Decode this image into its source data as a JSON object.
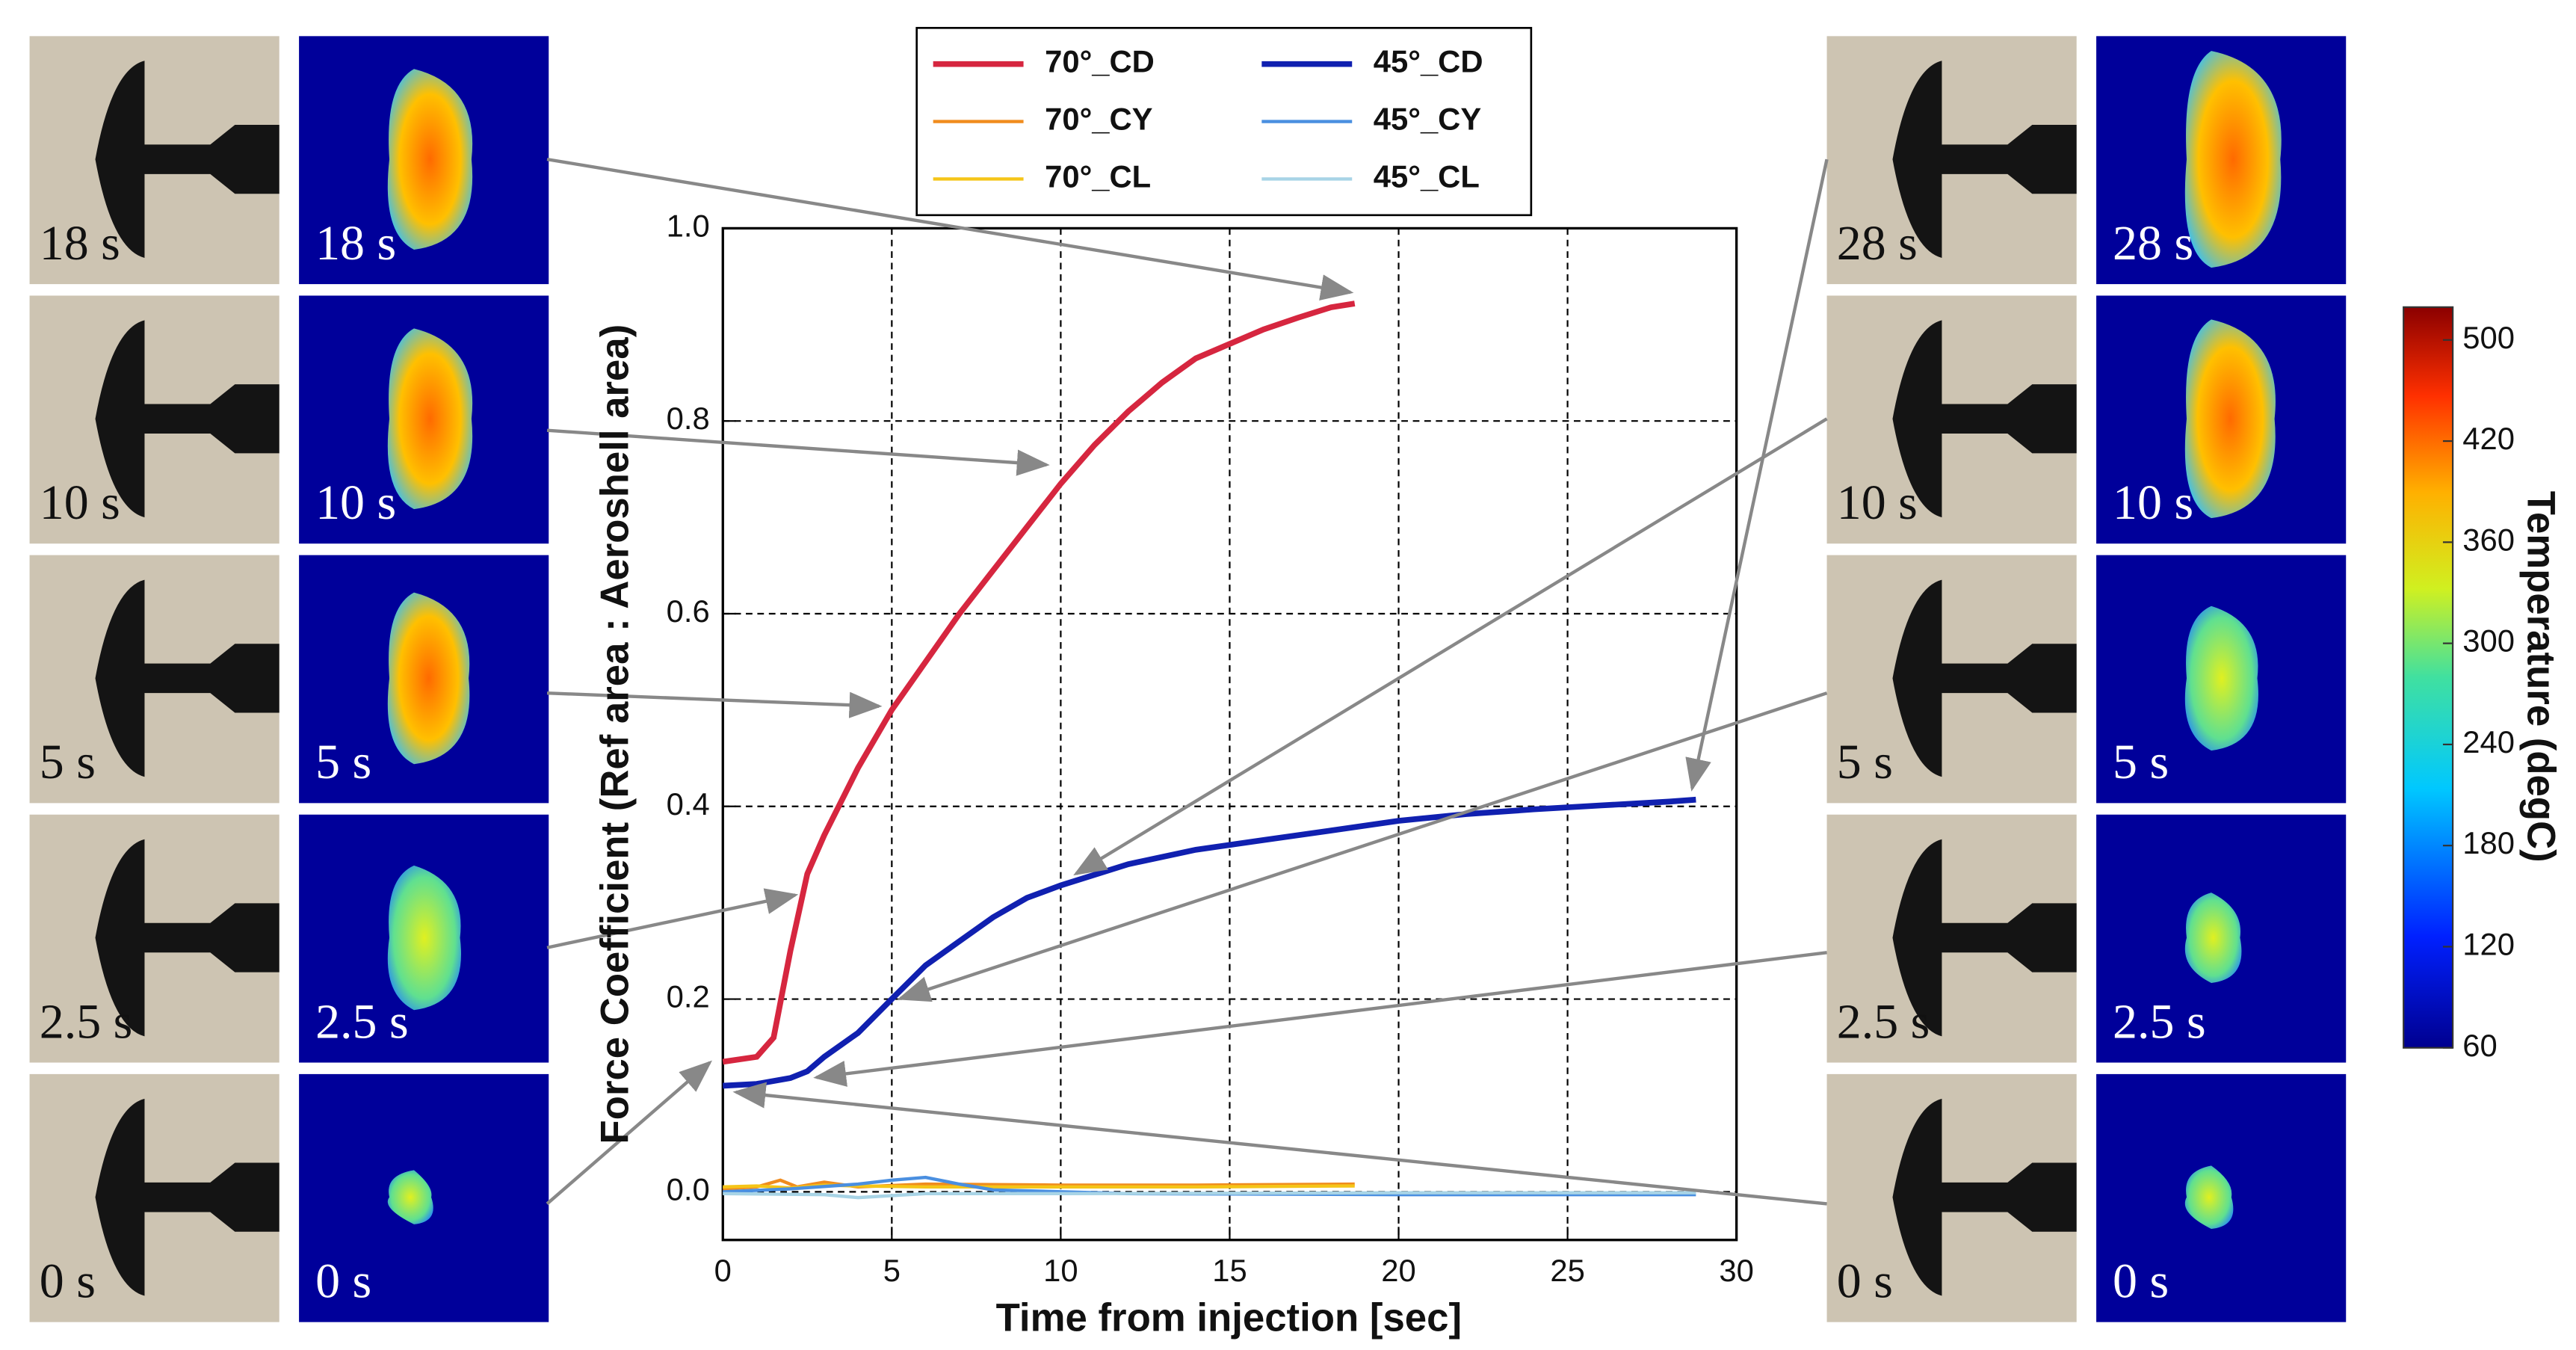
{
  "chart_data": {
    "type": "line",
    "xlabel": "Time from injection [sec]",
    "ylabel": "Force Coefficient (Ref area : Aeroshell area)",
    "xlim": [
      0,
      30
    ],
    "ylim": [
      -0.05,
      1.0
    ],
    "xticks": [
      0,
      5,
      10,
      15,
      20,
      25,
      30
    ],
    "yticks": [
      {
        "value": 0,
        "label": "0.0"
      },
      0.2,
      0.4,
      0.6,
      0.8,
      {
        "value": 1.0,
        "label": "1.0"
      }
    ],
    "grid": true,
    "series": [
      {
        "name": "70°_CD",
        "color": "#d6263f",
        "x": [
          0,
          1,
          1.5,
          2,
          2.5,
          3,
          4,
          5,
          6,
          7,
          8,
          9,
          10,
          11,
          12,
          13,
          14,
          15,
          16,
          17,
          18,
          18.7
        ],
        "values": [
          0.135,
          0.14,
          0.16,
          0.25,
          0.33,
          0.37,
          0.44,
          0.5,
          0.55,
          0.6,
          0.645,
          0.69,
          0.735,
          0.775,
          0.81,
          0.84,
          0.865,
          0.88,
          0.895,
          0.907,
          0.918,
          0.922
        ]
      },
      {
        "name": "70°_CY",
        "color": "#f08c1e",
        "x": [
          0,
          1,
          1.7,
          2.2,
          3,
          4,
          6,
          10,
          14,
          18.7
        ],
        "values": [
          0.003,
          0.005,
          0.012,
          0.005,
          0.01,
          0.005,
          0.008,
          0.007,
          0.007,
          0.008
        ]
      },
      {
        "name": "70°_CL",
        "color": "#f5c518",
        "x": [
          0,
          1,
          2,
          3,
          4,
          6,
          10,
          14,
          18.7
        ],
        "values": [
          0.005,
          0.006,
          0.004,
          0.007,
          0.006,
          0.005,
          0.005,
          0.005,
          0.006
        ]
      },
      {
        "name": "45°_CD",
        "color": "#1020b0",
        "x": [
          0,
          1,
          2,
          2.5,
          3,
          4,
          5,
          6,
          7,
          8,
          9,
          10,
          12,
          14,
          16,
          18,
          20,
          22,
          24,
          26,
          28,
          28.8
        ],
        "values": [
          0.11,
          0.112,
          0.118,
          0.125,
          0.14,
          0.165,
          0.2,
          0.235,
          0.26,
          0.285,
          0.305,
          0.318,
          0.34,
          0.355,
          0.365,
          0.375,
          0.385,
          0.392,
          0.397,
          0.401,
          0.405,
          0.407
        ]
      },
      {
        "name": "45°_CY",
        "color": "#4a8fe0",
        "x": [
          0,
          2,
          4,
          5,
          6,
          7,
          8,
          12,
          20,
          28.8
        ],
        "values": [
          0.0,
          0.003,
          0.008,
          0.012,
          0.015,
          0.008,
          0.002,
          -0.002,
          -0.003,
          -0.003
        ]
      },
      {
        "name": "45°_CL",
        "color": "#a8d4e6",
        "x": [
          0,
          3,
          4,
          6,
          10,
          20,
          28.8
        ],
        "values": [
          -0.002,
          -0.003,
          -0.006,
          -0.002,
          -0.002,
          -0.001,
          -0.001
        ]
      }
    ]
  },
  "left_panels": [
    {
      "label": "18 s"
    },
    {
      "label": "10 s"
    },
    {
      "label": "5 s"
    },
    {
      "label": "2.5 s"
    },
    {
      "label": "0 s"
    }
  ],
  "right_panels": [
    {
      "label": "28 s"
    },
    {
      "label": "10 s"
    },
    {
      "label": "5 s"
    },
    {
      "label": "2.5 s"
    },
    {
      "label": "0 s"
    }
  ],
  "colorbar": {
    "title": "Temperature (degC)",
    "ticks": [
      60,
      120,
      180,
      240,
      300,
      360,
      420,
      500
    ]
  }
}
